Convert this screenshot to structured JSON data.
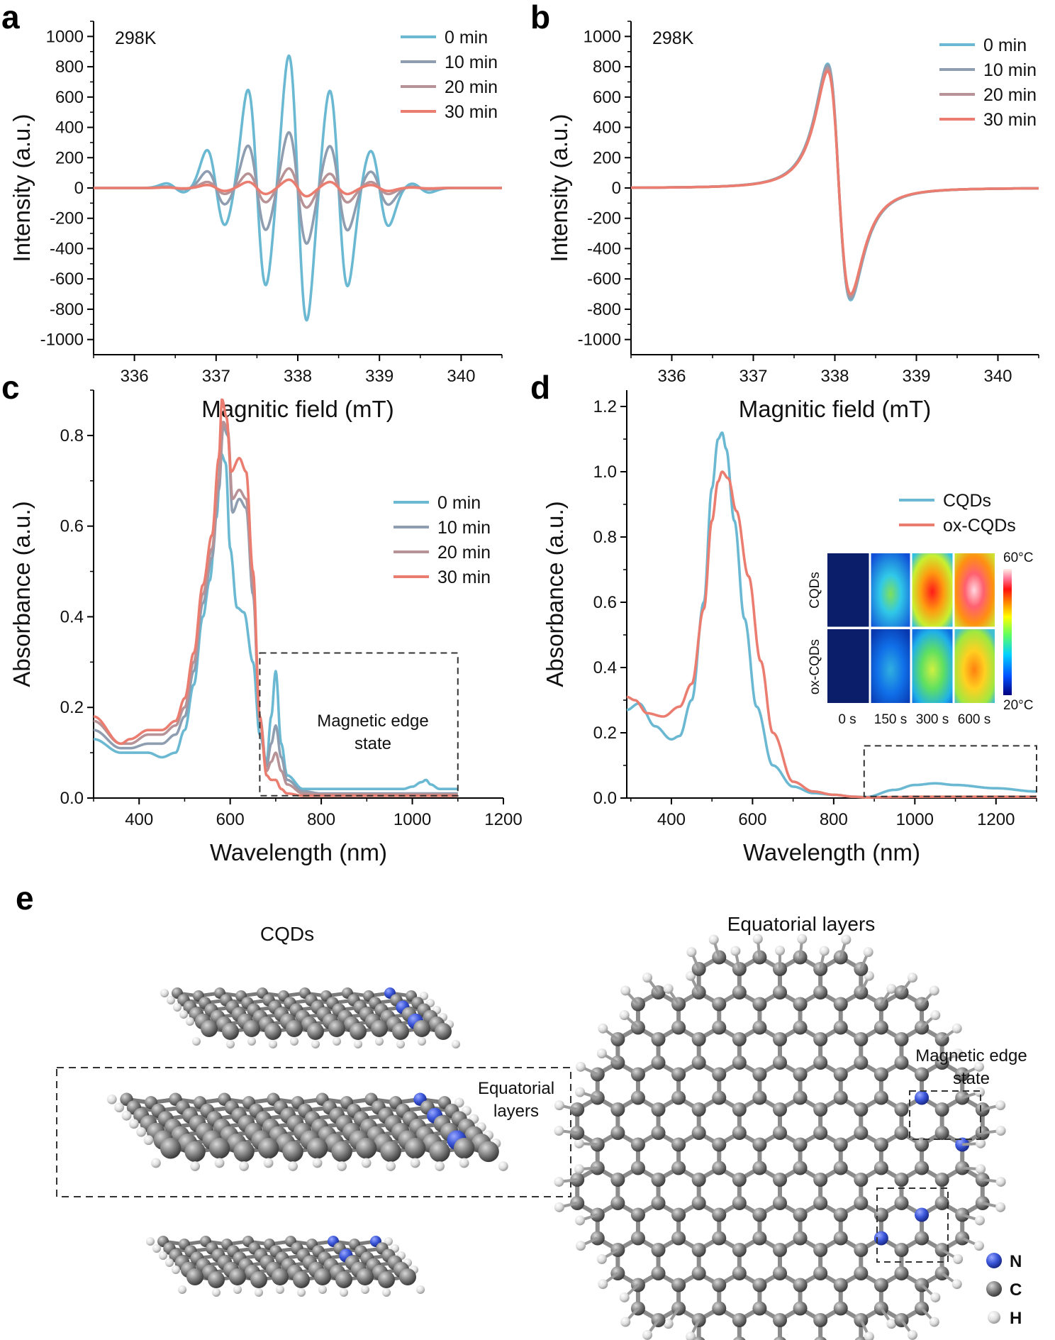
{
  "panels": {
    "a": "a",
    "b": "b",
    "c": "c",
    "d": "d",
    "e": "e"
  },
  "colors": {
    "s0": "#6ab8d2",
    "s10": "#8f9db0",
    "s20": "#b79397",
    "s30": "#ea7d6f",
    "cqds": "#6ab8d2",
    "oxcqds": "#ea7d6f",
    "nitrogen": "#3a55d8",
    "carbon": "#7f7f7f",
    "hydrogen": "#dedede"
  },
  "chart_data": [
    {
      "id": "a",
      "type": "line",
      "annotation": "298K",
      "xlabel": "Magnitic field (mT)",
      "ylabel": "Intensity (a.u.)",
      "xlim": [
        335.5,
        340.5
      ],
      "ylim": [
        -1100,
        1100
      ],
      "xticks": [
        336,
        337,
        338,
        339,
        340
      ],
      "yticks": [
        -1000,
        -800,
        -600,
        -400,
        -200,
        0,
        200,
        400,
        600,
        800,
        1000
      ],
      "legend": [
        "0 min",
        "10 min",
        "20 min",
        "30 min"
      ],
      "peaks_x": [
        336.5,
        337.0,
        337.5,
        338.0,
        338.5,
        339.0,
        339.5
      ],
      "series": [
        {
          "name": "0 min",
          "color_key": "s0",
          "amplitudes": [
            30,
            250,
            650,
            880,
            650,
            250,
            30
          ]
        },
        {
          "name": "10 min",
          "color_key": "s10",
          "amplitudes": [
            10,
            110,
            280,
            370,
            280,
            110,
            10
          ]
        },
        {
          "name": "20 min",
          "color_key": "s20",
          "amplitudes": [
            5,
            40,
            95,
            130,
            95,
            40,
            5
          ]
        },
        {
          "name": "30 min",
          "color_key": "s30",
          "amplitudes": [
            3,
            20,
            40,
            55,
            40,
            20,
            3
          ]
        }
      ]
    },
    {
      "id": "b",
      "type": "line",
      "annotation": "298K",
      "xlabel": "Magnitic field (mT)",
      "ylabel": "Intensity (a.u.)",
      "xlim": [
        335.5,
        340.5
      ],
      "ylim": [
        -1100,
        1100
      ],
      "xticks": [
        336,
        337,
        338,
        339,
        340
      ],
      "yticks": [
        -1000,
        -800,
        -600,
        -400,
        -200,
        0,
        200,
        400,
        600,
        800,
        1000
      ],
      "legend": [
        "0 min",
        "10 min",
        "20 min",
        "30 min"
      ],
      "center": 338.05,
      "series": [
        {
          "name": "0 min",
          "color_key": "s0",
          "max": 820,
          "min": -740
        },
        {
          "name": "10 min",
          "color_key": "s10",
          "max": 810,
          "min": -730
        },
        {
          "name": "20 min",
          "color_key": "s20",
          "max": 790,
          "min": -715
        },
        {
          "name": "30 min",
          "color_key": "s30",
          "max": 770,
          "min": -700
        }
      ]
    },
    {
      "id": "c",
      "type": "line",
      "xlabel": "Wavelength (nm)",
      "ylabel": "Absorbance (a.u.)",
      "xlim": [
        300,
        1200
      ],
      "ylim": [
        0,
        0.9
      ],
      "xticks": [
        400,
        600,
        800,
        1000,
        1200
      ],
      "yticks": [
        0.0,
        0.2,
        0.4,
        0.6,
        0.8
      ],
      "ytick_labels": [
        "0.0",
        "0.2",
        "0.4",
        "0.6",
        "0.8"
      ],
      "legend": [
        "0 min",
        "10 min",
        "20 min",
        "30 min"
      ],
      "box_annotation": "Magnetic edge state",
      "box_range_x": [
        665,
        1100
      ],
      "box_range_y": [
        0.005,
        0.32
      ],
      "series": [
        {
          "name": "0 min",
          "color_key": "s0",
          "x": [
            300,
            360,
            380,
            420,
            450,
            480,
            500,
            520,
            540,
            555,
            570,
            580,
            590,
            600,
            615,
            630,
            650,
            665,
            680,
            690,
            700,
            712,
            725,
            760,
            800,
            900,
            980,
            1000,
            1020,
            1030,
            1040,
            1060,
            1100
          ],
          "y": [
            0.13,
            0.1,
            0.1,
            0.1,
            0.09,
            0.1,
            0.15,
            0.25,
            0.4,
            0.48,
            0.62,
            0.76,
            0.74,
            0.55,
            0.42,
            0.41,
            0.3,
            0.14,
            0.08,
            0.18,
            0.28,
            0.12,
            0.05,
            0.02,
            0.02,
            0.02,
            0.02,
            0.025,
            0.035,
            0.04,
            0.03,
            0.02,
            0.02
          ]
        },
        {
          "name": "10 min",
          "color_key": "s10",
          "x": [
            300,
            360,
            380,
            420,
            450,
            480,
            500,
            520,
            540,
            560,
            575,
            585,
            595,
            605,
            620,
            635,
            650,
            665,
            680,
            690,
            700,
            712,
            725,
            760,
            800,
            900,
            1000,
            1100
          ],
          "y": [
            0.15,
            0.11,
            0.11,
            0.12,
            0.12,
            0.14,
            0.18,
            0.28,
            0.43,
            0.53,
            0.68,
            0.82,
            0.8,
            0.63,
            0.66,
            0.64,
            0.45,
            0.18,
            0.07,
            0.12,
            0.16,
            0.09,
            0.04,
            0.015,
            0.01,
            0.01,
            0.01,
            0.01
          ]
        },
        {
          "name": "20 min",
          "color_key": "s20",
          "x": [
            300,
            360,
            380,
            420,
            450,
            480,
            500,
            520,
            540,
            560,
            575,
            585,
            595,
            605,
            620,
            635,
            650,
            665,
            680,
            690,
            700,
            712,
            725,
            760,
            800,
            900,
            1000,
            1100
          ],
          "y": [
            0.17,
            0.12,
            0.12,
            0.14,
            0.14,
            0.16,
            0.2,
            0.3,
            0.45,
            0.55,
            0.7,
            0.83,
            0.81,
            0.66,
            0.68,
            0.66,
            0.47,
            0.17,
            0.06,
            0.08,
            0.1,
            0.06,
            0.03,
            0.01,
            0.008,
            0.008,
            0.008,
            0.008
          ]
        },
        {
          "name": "30 min",
          "color_key": "s30",
          "x": [
            300,
            360,
            380,
            420,
            450,
            480,
            500,
            520,
            540,
            560,
            575,
            582,
            592,
            602,
            620,
            635,
            650,
            665,
            680,
            690,
            700,
            712,
            725,
            760,
            800,
            900,
            1000,
            1100
          ],
          "y": [
            0.18,
            0.12,
            0.13,
            0.15,
            0.15,
            0.17,
            0.22,
            0.32,
            0.47,
            0.58,
            0.75,
            0.88,
            0.84,
            0.72,
            0.75,
            0.72,
            0.5,
            0.18,
            0.05,
            0.04,
            0.04,
            0.02,
            0.01,
            0.005,
            0.005,
            0.005,
            0.005,
            0.005
          ]
        }
      ]
    },
    {
      "id": "d",
      "type": "line",
      "xlabel": "Wavelength (nm)",
      "ylabel": "Absorbance (a.u.)",
      "xlim": [
        290,
        1300
      ],
      "ylim": [
        0,
        1.25
      ],
      "xticks": [
        400,
        600,
        800,
        1000,
        1200
      ],
      "yticks": [
        0.0,
        0.2,
        0.4,
        0.6,
        0.8,
        1.0,
        1.2
      ],
      "ytick_labels": [
        "0.0",
        "0.2",
        "0.4",
        "0.6",
        "0.8",
        "1.0",
        "1.2"
      ],
      "legend": [
        "CQDs",
        "ox-CQDs"
      ],
      "box_range_x": [
        875,
        1300
      ],
      "box_range_y": [
        0.005,
        0.16
      ],
      "series": [
        {
          "name": "CQDs",
          "color_key": "cqds",
          "x": [
            290,
            320,
            360,
            400,
            420,
            450,
            480,
            500,
            515,
            525,
            535,
            555,
            580,
            610,
            650,
            700,
            750,
            800,
            850,
            880,
            950,
            1000,
            1050,
            1100,
            1200,
            1300
          ],
          "y": [
            0.27,
            0.29,
            0.22,
            0.18,
            0.19,
            0.3,
            0.6,
            0.95,
            1.1,
            1.12,
            1.07,
            0.85,
            0.55,
            0.28,
            0.1,
            0.035,
            0.015,
            0.01,
            0.004,
            0.003,
            0.025,
            0.04,
            0.045,
            0.04,
            0.03,
            0.02
          ]
        },
        {
          "name": "ox-CQDs",
          "color_key": "oxcqds",
          "x": [
            290,
            310,
            340,
            380,
            420,
            450,
            480,
            500,
            515,
            525,
            540,
            560,
            590,
            620,
            650,
            700,
            750,
            800,
            850,
            880,
            950,
            1000,
            1100,
            1200,
            1300
          ],
          "y": [
            0.31,
            0.3,
            0.26,
            0.25,
            0.28,
            0.35,
            0.58,
            0.85,
            0.97,
            1.0,
            0.98,
            0.88,
            0.68,
            0.42,
            0.2,
            0.05,
            0.02,
            0.01,
            0.004,
            0.002,
            0.003,
            0.004,
            0.004,
            0.004,
            0.004
          ]
        }
      ]
    }
  ],
  "thermal_inset": {
    "row_labels": [
      "CQDs",
      "ox-CQDs"
    ],
    "time_labels": [
      "0 s",
      "150 s",
      "300 s",
      "600 s"
    ],
    "colorbar_max": "60°C",
    "colorbar_min": "20°C"
  },
  "panel_e": {
    "left_title": "CQDs",
    "left_box_label_line1": "Equatorial",
    "left_box_label_line2": "layers",
    "right_title": "Equatorial layers",
    "right_box_label_line1": "Magnetic edge",
    "right_box_label_line2": "state",
    "legend": [
      {
        "symbol": "N",
        "color_key": "nitrogen"
      },
      {
        "symbol": "C",
        "color_key": "carbon"
      },
      {
        "symbol": "H",
        "color_key": "hydrogen"
      }
    ]
  }
}
